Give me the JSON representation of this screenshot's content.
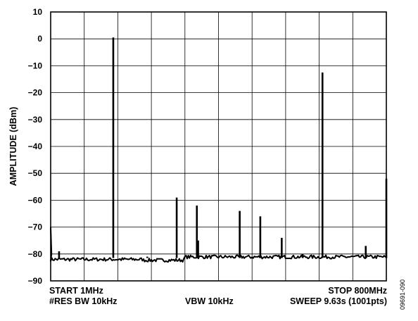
{
  "chart_data": {
    "type": "line",
    "title": "",
    "xlabel": "",
    "ylabel": "AMPLITUDE (dBm)",
    "xlim": [
      1,
      800
    ],
    "ylim": [
      -90,
      10
    ],
    "y_ticks": [
      10,
      0,
      -10,
      -20,
      -30,
      -40,
      -50,
      -60,
      -70,
      -80,
      -90
    ],
    "y_tick_labels": [
      "10",
      "0",
      "−10",
      "−20",
      "−30",
      "−40",
      "−50",
      "−60",
      "−70",
      "−80",
      "−90"
    ],
    "x_divisions": 10,
    "grid": true,
    "legend": "none",
    "noise_floor_dBm": -82,
    "peaks": [
      {
        "x": 21,
        "y": -79
      },
      {
        "x": 150,
        "y": 0.5
      },
      {
        "x": 231,
        "y": -81
      },
      {
        "x": 301,
        "y": -59
      },
      {
        "x": 349,
        "y": -62
      },
      {
        "x": 352,
        "y": -75
      },
      {
        "x": 451,
        "y": -64
      },
      {
        "x": 500,
        "y": -66
      },
      {
        "x": 551,
        "y": -74
      },
      {
        "x": 601,
        "y": -80
      },
      {
        "x": 648,
        "y": -12.5
      },
      {
        "x": 751,
        "y": -77
      },
      {
        "x": 800,
        "y": -52
      }
    ],
    "annotations": {
      "start": "START 1MHz",
      "stop": "STOP 800MHz",
      "rbw": "#RES BW 10kHz",
      "vbw": "VBW 10kHz",
      "sweep": "SWEEP 9.63s (1001pts)"
    }
  },
  "figure_id": "09691-090"
}
